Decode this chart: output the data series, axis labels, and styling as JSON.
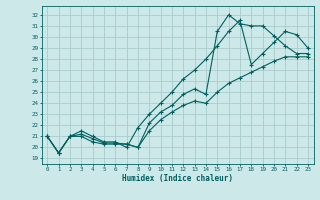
{
  "xlabel": "Humidex (Indice chaleur)",
  "bg_color": "#cce8e8",
  "grid_color": "#aacccc",
  "line_color": "#006060",
  "xlim": [
    -0.5,
    23.5
  ],
  "ylim": [
    18.5,
    32.8
  ],
  "yticks": [
    19,
    20,
    21,
    22,
    23,
    24,
    25,
    26,
    27,
    28,
    29,
    30,
    31,
    32
  ],
  "xticks": [
    0,
    1,
    2,
    3,
    4,
    5,
    6,
    7,
    8,
    9,
    10,
    11,
    12,
    13,
    14,
    15,
    16,
    17,
    18,
    19,
    20,
    21,
    22,
    23
  ],
  "line1_x": [
    0,
    1,
    2,
    3,
    4,
    5,
    6,
    7,
    8,
    9,
    10,
    11,
    12,
    13,
    14,
    15,
    16,
    17,
    18,
    19,
    20,
    21,
    22,
    23
  ],
  "line1_y": [
    21.0,
    19.5,
    21.0,
    21.2,
    20.8,
    20.4,
    20.4,
    20.3,
    20.0,
    22.2,
    23.2,
    23.8,
    24.8,
    25.3,
    24.8,
    30.5,
    32.0,
    31.2,
    31.0,
    31.0,
    30.1,
    29.2,
    28.5,
    28.5
  ],
  "line2_x": [
    0,
    1,
    2,
    3,
    4,
    5,
    6,
    7,
    8,
    9,
    10,
    11,
    12,
    13,
    14,
    15,
    16,
    17,
    18,
    19,
    20,
    21,
    22,
    23
  ],
  "line2_y": [
    21.0,
    19.5,
    21.0,
    21.5,
    21.0,
    20.5,
    20.5,
    20.0,
    21.8,
    23.0,
    24.0,
    25.0,
    26.2,
    27.0,
    28.0,
    29.2,
    30.5,
    31.5,
    27.5,
    28.5,
    29.5,
    30.5,
    30.2,
    29.0
  ],
  "line3_x": [
    0,
    1,
    2,
    3,
    4,
    5,
    6,
    7,
    8,
    9,
    10,
    11,
    12,
    13,
    14,
    15,
    16,
    17,
    18,
    19,
    20,
    21,
    22,
    23
  ],
  "line3_y": [
    21.0,
    19.5,
    21.0,
    21.0,
    20.5,
    20.3,
    20.3,
    20.3,
    20.0,
    21.5,
    22.5,
    23.2,
    23.8,
    24.2,
    24.0,
    25.0,
    25.8,
    26.3,
    26.8,
    27.3,
    27.8,
    28.2,
    28.2,
    28.2
  ]
}
